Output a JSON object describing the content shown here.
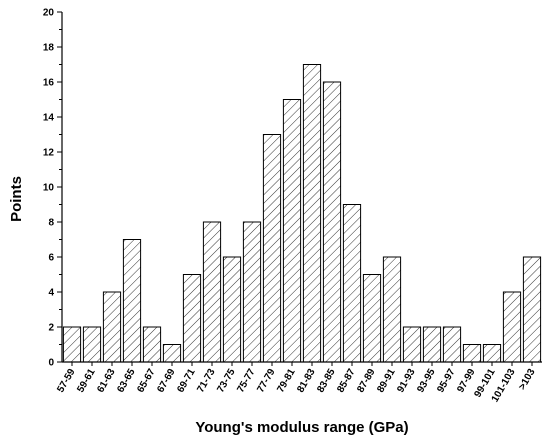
{
  "chart_data": {
    "type": "bar",
    "categories": [
      "57-59",
      "59-61",
      "61-63",
      "63-65",
      "65-67",
      "67-69",
      "69-71",
      "71-73",
      "73-75",
      "75-77",
      "77-79",
      "79-81",
      "81-83",
      "83-85",
      "85-87",
      "87-89",
      "89-91",
      "91-93",
      "93-95",
      "95-97",
      "97-99",
      "99-101",
      "101-103",
      ">103"
    ],
    "values": [
      2,
      2,
      4,
      7,
      2,
      1,
      5,
      8,
      6,
      8,
      13,
      15,
      17,
      16,
      9,
      5,
      6,
      2,
      2,
      2,
      1,
      1,
      4,
      6
    ],
    "title": "",
    "xlabel": "Young's modulus range (GPa)",
    "ylabel": "Points",
    "ylim": [
      0,
      20
    ],
    "yticks": [
      0,
      2,
      4,
      6,
      8,
      10,
      12,
      14,
      16,
      18,
      20
    ],
    "bar_fill": "hatched",
    "grid": false
  }
}
